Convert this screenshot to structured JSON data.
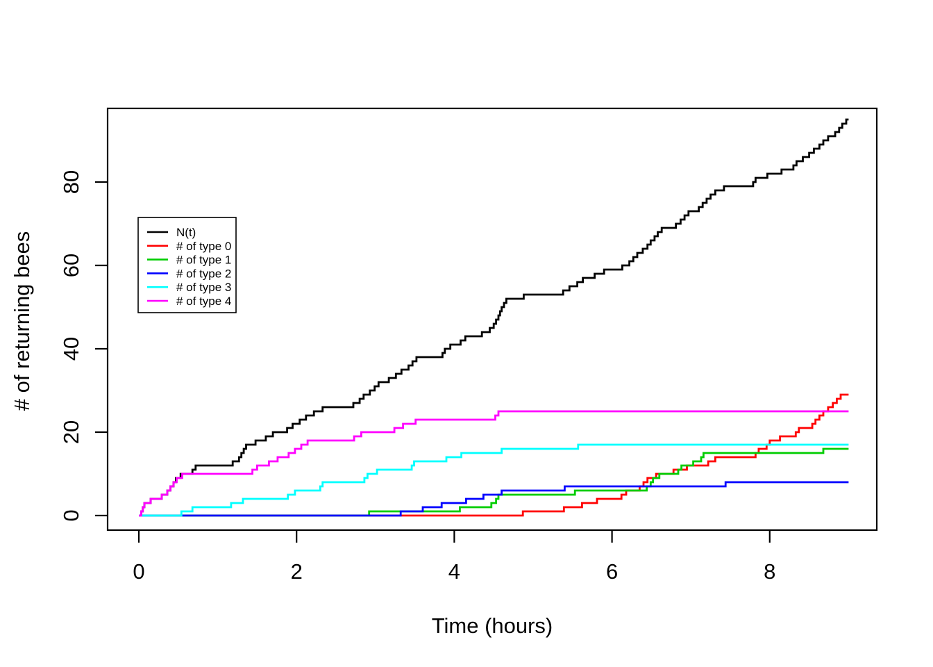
{
  "chart_data": {
    "type": "line",
    "subtype": "step-counting-process",
    "title": "",
    "xlabel": "Time (hours)",
    "ylabel": "# of returning bees",
    "xlim": [
      0,
      9
    ],
    "ylim": [
      0,
      95
    ],
    "x_ticks": [
      0,
      2,
      4,
      6,
      8
    ],
    "y_ticks": [
      0,
      20,
      40,
      60,
      80
    ],
    "x_end": 9.0,
    "grid": "off",
    "legend_position": "left-middle",
    "background_color": "#FFFFFF",
    "axis_color": "#000000",
    "series": [
      {
        "name": "N(t)",
        "color": "#000000",
        "steps": [
          [
            0,
            0
          ],
          [
            0.03,
            1
          ],
          [
            0.05,
            2
          ],
          [
            0.07,
            3
          ],
          [
            0.15,
            4
          ],
          [
            0.29,
            5
          ],
          [
            0.36,
            6
          ],
          [
            0.4,
            7
          ],
          [
            0.44,
            8
          ],
          [
            0.47,
            9
          ],
          [
            0.53,
            10
          ],
          [
            0.68,
            11
          ],
          [
            0.72,
            12
          ],
          [
            1.19,
            13
          ],
          [
            1.27,
            14
          ],
          [
            1.3,
            15
          ],
          [
            1.33,
            16
          ],
          [
            1.36,
            17
          ],
          [
            1.48,
            18
          ],
          [
            1.61,
            19
          ],
          [
            1.7,
            20
          ],
          [
            1.88,
            21
          ],
          [
            1.95,
            22
          ],
          [
            2.04,
            23
          ],
          [
            2.12,
            24
          ],
          [
            2.22,
            25
          ],
          [
            2.33,
            26
          ],
          [
            2.72,
            27
          ],
          [
            2.8,
            28
          ],
          [
            2.85,
            29
          ],
          [
            2.93,
            30
          ],
          [
            2.99,
            31
          ],
          [
            3.04,
            32
          ],
          [
            3.17,
            33
          ],
          [
            3.26,
            34
          ],
          [
            3.33,
            35
          ],
          [
            3.42,
            36
          ],
          [
            3.47,
            37
          ],
          [
            3.52,
            38
          ],
          [
            3.85,
            39
          ],
          [
            3.88,
            40
          ],
          [
            3.95,
            41
          ],
          [
            4.08,
            42
          ],
          [
            4.14,
            43
          ],
          [
            4.35,
            44
          ],
          [
            4.45,
            45
          ],
          [
            4.5,
            46
          ],
          [
            4.53,
            47
          ],
          [
            4.56,
            48
          ],
          [
            4.58,
            49
          ],
          [
            4.6,
            50
          ],
          [
            4.63,
            51
          ],
          [
            4.66,
            52
          ],
          [
            4.88,
            53
          ],
          [
            5.38,
            54
          ],
          [
            5.46,
            55
          ],
          [
            5.56,
            56
          ],
          [
            5.63,
            57
          ],
          [
            5.78,
            58
          ],
          [
            5.9,
            59
          ],
          [
            6.13,
            60
          ],
          [
            6.22,
            61
          ],
          [
            6.27,
            62
          ],
          [
            6.32,
            63
          ],
          [
            6.39,
            64
          ],
          [
            6.45,
            65
          ],
          [
            6.49,
            66
          ],
          [
            6.54,
            67
          ],
          [
            6.58,
            68
          ],
          [
            6.63,
            69
          ],
          [
            6.81,
            70
          ],
          [
            6.87,
            71
          ],
          [
            6.92,
            72
          ],
          [
            6.97,
            73
          ],
          [
            7.1,
            74
          ],
          [
            7.15,
            75
          ],
          [
            7.2,
            76
          ],
          [
            7.25,
            77
          ],
          [
            7.31,
            78
          ],
          [
            7.42,
            79
          ],
          [
            7.79,
            80
          ],
          [
            7.82,
            81
          ],
          [
            7.97,
            82
          ],
          [
            8.15,
            83
          ],
          [
            8.3,
            84
          ],
          [
            8.34,
            85
          ],
          [
            8.42,
            86
          ],
          [
            8.5,
            87
          ],
          [
            8.56,
            88
          ],
          [
            8.63,
            89
          ],
          [
            8.68,
            90
          ],
          [
            8.74,
            91
          ],
          [
            8.83,
            92
          ],
          [
            8.88,
            93
          ],
          [
            8.92,
            94
          ],
          [
            8.97,
            95
          ]
        ]
      },
      {
        "name": "# of type 0",
        "color": "#FF0000",
        "steps": [
          [
            0,
            0
          ],
          [
            4.87,
            1
          ],
          [
            5.39,
            2
          ],
          [
            5.62,
            3
          ],
          [
            5.81,
            4
          ],
          [
            6.12,
            5
          ],
          [
            6.18,
            6
          ],
          [
            6.35,
            7
          ],
          [
            6.4,
            8
          ],
          [
            6.45,
            9
          ],
          [
            6.56,
            10
          ],
          [
            6.78,
            11
          ],
          [
            6.95,
            12
          ],
          [
            7.22,
            13
          ],
          [
            7.31,
            14
          ],
          [
            7.82,
            15
          ],
          [
            7.86,
            16
          ],
          [
            7.96,
            17
          ],
          [
            8.0,
            18
          ],
          [
            8.13,
            19
          ],
          [
            8.33,
            20
          ],
          [
            8.37,
            21
          ],
          [
            8.54,
            22
          ],
          [
            8.58,
            23
          ],
          [
            8.63,
            24
          ],
          [
            8.68,
            25
          ],
          [
            8.74,
            26
          ],
          [
            8.8,
            27
          ],
          [
            8.85,
            28
          ],
          [
            8.9,
            29
          ]
        ]
      },
      {
        "name": "# of type 1",
        "color": "#00CD00",
        "steps": [
          [
            0,
            0
          ],
          [
            2.92,
            1
          ],
          [
            4.07,
            2
          ],
          [
            4.47,
            3
          ],
          [
            4.53,
            4
          ],
          [
            4.56,
            5
          ],
          [
            5.53,
            6
          ],
          [
            6.44,
            7
          ],
          [
            6.49,
            8
          ],
          [
            6.52,
            9
          ],
          [
            6.6,
            10
          ],
          [
            6.84,
            11
          ],
          [
            6.88,
            12
          ],
          [
            7.03,
            13
          ],
          [
            7.13,
            14
          ],
          [
            7.16,
            15
          ],
          [
            8.68,
            16
          ]
        ]
      },
      {
        "name": "# of type 2",
        "color": "#0000FF",
        "steps": [
          [
            0,
            0
          ],
          [
            3.32,
            1
          ],
          [
            3.6,
            2
          ],
          [
            3.84,
            3
          ],
          [
            4.15,
            4
          ],
          [
            4.37,
            5
          ],
          [
            4.6,
            6
          ],
          [
            5.4,
            7
          ],
          [
            7.44,
            8
          ]
        ]
      },
      {
        "name": "# of type 3",
        "color": "#00FFFF",
        "steps": [
          [
            0,
            0
          ],
          [
            0.54,
            1
          ],
          [
            0.68,
            2
          ],
          [
            1.17,
            3
          ],
          [
            1.32,
            4
          ],
          [
            1.89,
            5
          ],
          [
            1.98,
            6
          ],
          [
            2.3,
            7
          ],
          [
            2.33,
            8
          ],
          [
            2.86,
            9
          ],
          [
            2.9,
            10
          ],
          [
            3.02,
            11
          ],
          [
            3.46,
            12
          ],
          [
            3.49,
            13
          ],
          [
            3.9,
            14
          ],
          [
            4.09,
            15
          ],
          [
            4.6,
            16
          ],
          [
            5.57,
            17
          ]
        ]
      },
      {
        "name": "# of type 4",
        "color": "#FF00FF",
        "steps": [
          [
            0,
            0
          ],
          [
            0.03,
            1
          ],
          [
            0.05,
            2
          ],
          [
            0.07,
            3
          ],
          [
            0.15,
            4
          ],
          [
            0.29,
            5
          ],
          [
            0.36,
            6
          ],
          [
            0.4,
            7
          ],
          [
            0.44,
            8
          ],
          [
            0.48,
            9
          ],
          [
            0.55,
            10
          ],
          [
            1.44,
            11
          ],
          [
            1.5,
            12
          ],
          [
            1.65,
            13
          ],
          [
            1.76,
            14
          ],
          [
            1.9,
            15
          ],
          [
            1.98,
            16
          ],
          [
            2.06,
            17
          ],
          [
            2.14,
            18
          ],
          [
            2.73,
            19
          ],
          [
            2.82,
            20
          ],
          [
            3.24,
            21
          ],
          [
            3.35,
            22
          ],
          [
            3.51,
            23
          ],
          [
            4.52,
            24
          ],
          [
            4.56,
            25
          ]
        ]
      }
    ]
  }
}
